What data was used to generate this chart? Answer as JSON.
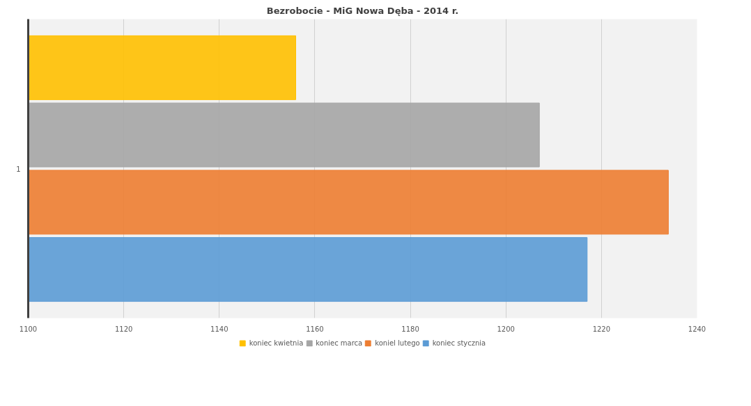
{
  "chart_data": {
    "type": "bar",
    "orientation": "horizontal",
    "title": "Bezrobocie - MiG Nowa Dęba - 2014 r.",
    "categories": [
      "1"
    ],
    "series": [
      {
        "name": "koniec kwietnia",
        "color": "#ffc000",
        "values": [
          1156
        ]
      },
      {
        "name": "koniec marca",
        "color": "#a5a5a5",
        "values": [
          1207
        ]
      },
      {
        "name": "koniel lutego",
        "color": "#ed7d31",
        "values": [
          1234
        ]
      },
      {
        "name": "koniec stycznia",
        "color": "#5b9bd5",
        "values": [
          1217
        ]
      }
    ],
    "xlim": [
      1100,
      1240
    ],
    "xticks": [
      1100,
      1120,
      1140,
      1160,
      1180,
      1200,
      1220,
      1240
    ],
    "grid": "x",
    "legend": "bottom"
  }
}
